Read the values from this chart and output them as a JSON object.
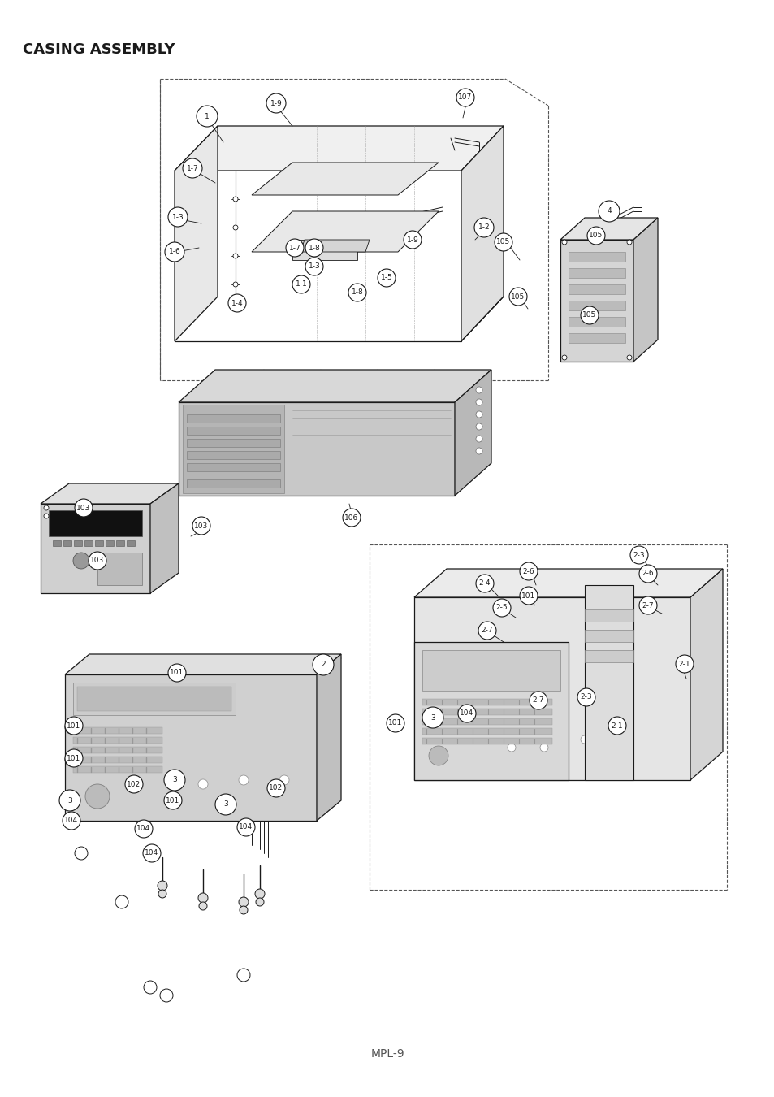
{
  "title": "CASING ASSEMBLY",
  "footer": "MPL-9",
  "bg_color": "#ffffff",
  "text_color": "#1a1a1a",
  "line_color": "#1a1a1a",
  "title_fontsize": 13,
  "footer_fontsize": 10
}
